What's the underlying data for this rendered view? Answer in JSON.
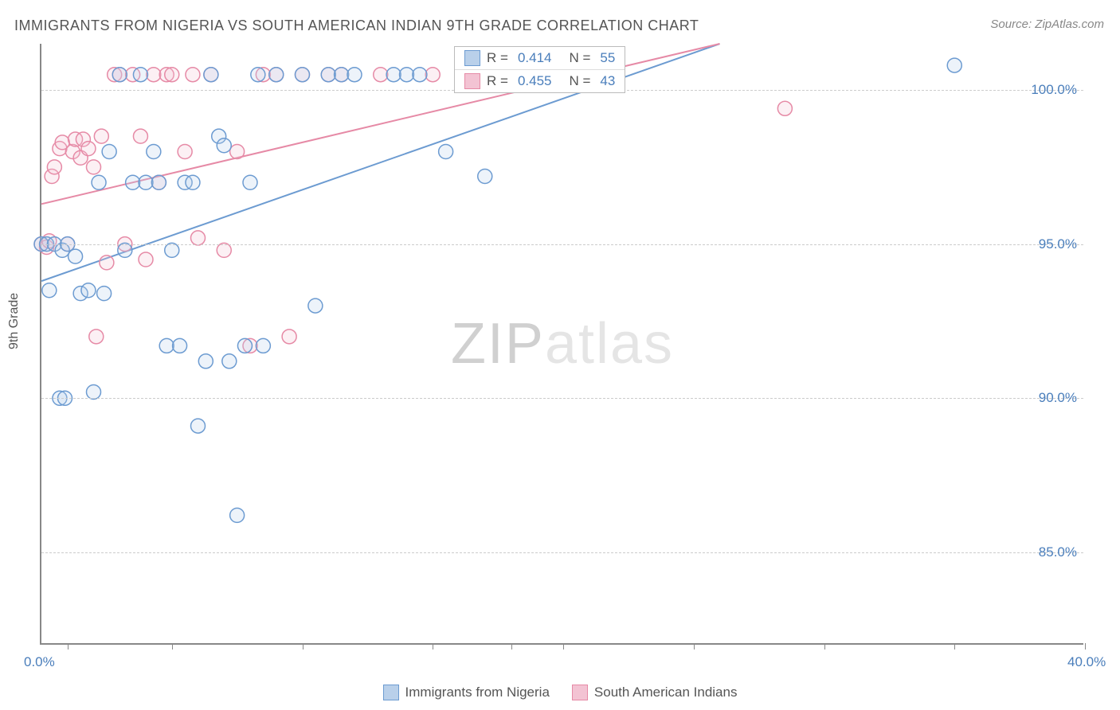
{
  "title": "IMMIGRANTS FROM NIGERIA VS SOUTH AMERICAN INDIAN 9TH GRADE CORRELATION CHART",
  "source_label": "Source:",
  "source_name": "ZipAtlas.com",
  "y_axis_label": "9th Grade",
  "watermark_bold": "ZIP",
  "watermark_light": "atlas",
  "chart": {
    "type": "scatter",
    "background_color": "#ffffff",
    "grid_color": "#cccccc",
    "axis_color": "#888888",
    "xlim": [
      0,
      40
    ],
    "ylim": [
      82,
      101.5
    ],
    "x_tick_labels": [
      {
        "pos": 0,
        "label": "0.0%"
      },
      {
        "pos": 40,
        "label": "40.0%"
      }
    ],
    "x_minor_ticks": [
      1,
      5,
      10,
      15,
      18,
      20,
      25,
      30,
      35,
      40
    ],
    "y_tick_labels": [
      {
        "pos": 85,
        "label": "85.0%"
      },
      {
        "pos": 90,
        "label": "90.0%"
      },
      {
        "pos": 95,
        "label": "95.0%"
      },
      {
        "pos": 100,
        "label": "100.0%"
      }
    ],
    "marker_radius": 9,
    "marker_stroke_width": 1.5,
    "marker_fill_opacity": 0.25,
    "line_width": 2,
    "series": [
      {
        "name": "Immigrants from Nigeria",
        "color": "#6c9bd1",
        "fill": "#b9d0ea",
        "R": "0.414",
        "N": "55",
        "trend": {
          "x1": 0,
          "y1": 93.8,
          "x2": 26,
          "y2": 101.5
        },
        "points": [
          [
            0,
            95
          ],
          [
            0.2,
            95
          ],
          [
            0.3,
            93.5
          ],
          [
            0.5,
            95
          ],
          [
            0.7,
            90
          ],
          [
            0.8,
            94.8
          ],
          [
            0.9,
            90
          ],
          [
            1,
            95
          ],
          [
            1.3,
            94.6
          ],
          [
            1.5,
            93.4
          ],
          [
            1.8,
            93.5
          ],
          [
            2,
            90.2
          ],
          [
            2.2,
            97
          ],
          [
            2.4,
            93.4
          ],
          [
            2.6,
            98
          ],
          [
            3,
            100.5
          ],
          [
            3.2,
            94.8
          ],
          [
            3.5,
            97
          ],
          [
            3.8,
            100.5
          ],
          [
            4,
            97
          ],
          [
            4.3,
            98
          ],
          [
            4.5,
            97
          ],
          [
            4.8,
            91.7
          ],
          [
            5,
            94.8
          ],
          [
            5.3,
            91.7
          ],
          [
            5.5,
            97
          ],
          [
            5.8,
            97
          ],
          [
            6,
            89.1
          ],
          [
            6.3,
            91.2
          ],
          [
            6.5,
            100.5
          ],
          [
            6.8,
            98.5
          ],
          [
            7,
            98.2
          ],
          [
            7.2,
            91.2
          ],
          [
            7.8,
            91.7
          ],
          [
            7.5,
            86.2
          ],
          [
            8,
            97
          ],
          [
            8.3,
            100.5
          ],
          [
            8.5,
            91.7
          ],
          [
            9,
            100.5
          ],
          [
            10,
            100.5
          ],
          [
            10.5,
            93
          ],
          [
            11,
            100.5
          ],
          [
            11.5,
            100.5
          ],
          [
            12,
            100.5
          ],
          [
            13.5,
            100.5
          ],
          [
            14,
            100.5
          ],
          [
            14.5,
            100.5
          ],
          [
            15.5,
            98
          ],
          [
            17,
            97.2
          ],
          [
            35,
            100.8
          ]
        ]
      },
      {
        "name": "South American Indians",
        "color": "#e68aa6",
        "fill": "#f3c3d3",
        "R": "0.455",
        "N": "43",
        "trend": {
          "x1": 0,
          "y1": 96.3,
          "x2": 26,
          "y2": 101.5
        },
        "points": [
          [
            0,
            95
          ],
          [
            0.2,
            94.9
          ],
          [
            0.3,
            95.1
          ],
          [
            0.4,
            97.2
          ],
          [
            0.5,
            97.5
          ],
          [
            0.7,
            98.1
          ],
          [
            0.8,
            98.3
          ],
          [
            1,
            95
          ],
          [
            1.2,
            98
          ],
          [
            1.3,
            98.4
          ],
          [
            1.5,
            97.8
          ],
          [
            1.6,
            98.4
          ],
          [
            1.8,
            98.1
          ],
          [
            2,
            97.5
          ],
          [
            2.1,
            92
          ],
          [
            2.3,
            98.5
          ],
          [
            2.5,
            94.4
          ],
          [
            2.8,
            100.5
          ],
          [
            3,
            100.5
          ],
          [
            3.2,
            95
          ],
          [
            3.5,
            100.5
          ],
          [
            3.8,
            98.5
          ],
          [
            4,
            94.5
          ],
          [
            4.3,
            100.5
          ],
          [
            4.5,
            97
          ],
          [
            4.8,
            100.5
          ],
          [
            5,
            100.5
          ],
          [
            5.5,
            98
          ],
          [
            5.8,
            100.5
          ],
          [
            6,
            95.2
          ],
          [
            6.5,
            100.5
          ],
          [
            7,
            94.8
          ],
          [
            7.5,
            98
          ],
          [
            8,
            91.7
          ],
          [
            8.5,
            100.5
          ],
          [
            9,
            100.5
          ],
          [
            9.5,
            92
          ],
          [
            10,
            100.5
          ],
          [
            11,
            100.5
          ],
          [
            11.5,
            100.5
          ],
          [
            13,
            100.5
          ],
          [
            15,
            100.5
          ],
          [
            28.5,
            99.4
          ]
        ]
      }
    ],
    "legend_top": {
      "R_label": "R =",
      "N_label": "N ="
    }
  }
}
